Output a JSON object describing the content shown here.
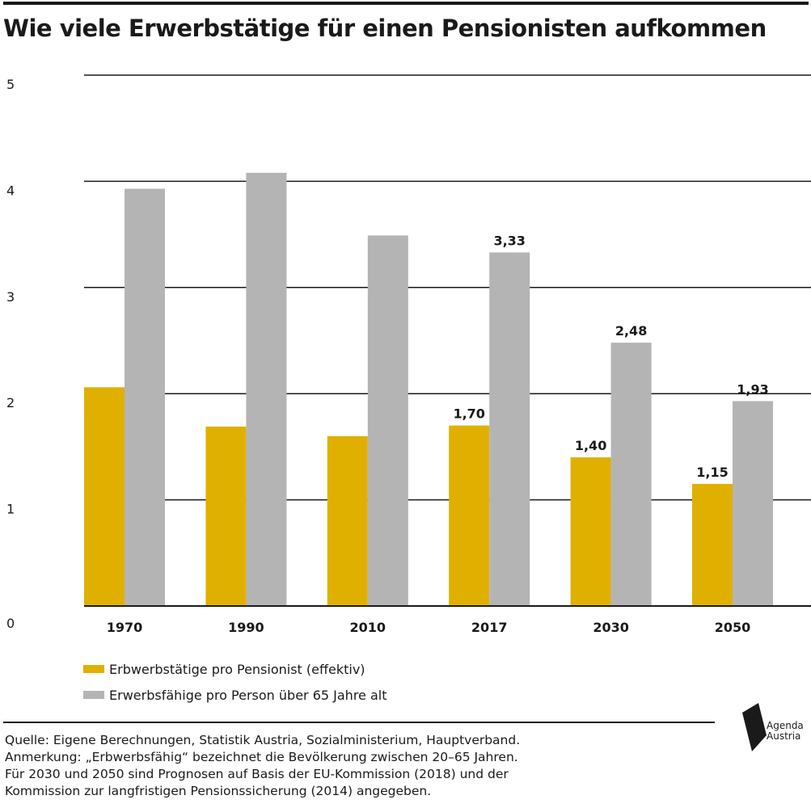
{
  "title": "Wie viele Erwerbstätige für einen Pensionisten aufkommen",
  "chart_data": {
    "type": "bar",
    "categories": [
      "1970",
      "1990",
      "2010",
      "2017",
      "2030",
      "2050"
    ],
    "series": [
      {
        "name": "Erbwerbstätige pro Pensionist (effektiv)",
        "color": "#e0b000",
        "values": [
          2.06,
          1.69,
          1.6,
          1.7,
          1.4,
          1.15
        ]
      },
      {
        "name": "Erwerbsfähige pro Person über 65 Jahre alt",
        "color": "#b4b4b4",
        "values": [
          3.93,
          4.08,
          3.49,
          3.33,
          2.48,
          1.93
        ]
      }
    ],
    "data_labels": [
      [
        null,
        null,
        null,
        "1,70",
        "1,40",
        "1,15"
      ],
      [
        null,
        null,
        null,
        "3,33",
        "2,48",
        "1,93"
      ]
    ],
    "y_ticks": [
      "0",
      "1",
      "2",
      "3",
      "4",
      "5"
    ],
    "ylim": [
      0,
      5
    ],
    "grid": true,
    "legend_position": "bottom-left",
    "xlabel": "",
    "ylabel": ""
  },
  "notes": {
    "source": "Quelle: Eigene Berechnungen, Statistik Austria, Sozialministerium, Hauptverband.",
    "note_1": "Anmerkung: „Erbwerbsfähig“ bezeichnet die Bevölkerung zwischen 20–65 Jahren.",
    "note_2": "Für 2030 und 2050 sind Prognosen auf Basis der EU-Kommission (2018) und der",
    "note_3": "Kommission zur langfristigen Pensionssicherung (2014) angegeben."
  },
  "logo": {
    "line_1": "Agenda",
    "line_2": "Austria",
    "icon": "agenda-austria-logo-icon"
  }
}
